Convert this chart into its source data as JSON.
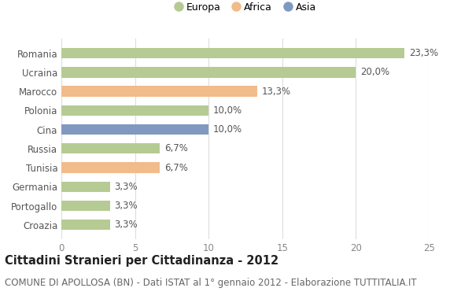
{
  "categories": [
    "Romania",
    "Ucraina",
    "Marocco",
    "Polonia",
    "Cina",
    "Russia",
    "Tunisia",
    "Germania",
    "Portogallo",
    "Croazia"
  ],
  "values": [
    23.3,
    20.0,
    13.3,
    10.0,
    10.0,
    6.7,
    6.7,
    3.3,
    3.3,
    3.3
  ],
  "labels": [
    "23,3%",
    "20,0%",
    "13,3%",
    "10,0%",
    "10,0%",
    "6,7%",
    "6,7%",
    "3,3%",
    "3,3%",
    "3,3%"
  ],
  "continent": [
    "Europa",
    "Europa",
    "Africa",
    "Europa",
    "Asia",
    "Europa",
    "Africa",
    "Europa",
    "Europa",
    "Europa"
  ],
  "colors": {
    "Europa": "#b5cb93",
    "Africa": "#f2bb8a",
    "Asia": "#8099c0"
  },
  "legend_items": [
    "Europa",
    "Africa",
    "Asia"
  ],
  "xlim": [
    0,
    25
  ],
  "xticks": [
    0,
    5,
    10,
    15,
    20,
    25
  ],
  "title": "Cittadini Stranieri per Cittadinanza - 2012",
  "subtitle": "COMUNE DI APOLLOSA (BN) - Dati ISTAT al 1° gennaio 2012 - Elaborazione TUTTITALIA.IT",
  "bg_color": "#ffffff",
  "bar_height": 0.55,
  "label_fontsize": 8.5,
  "title_fontsize": 10.5,
  "subtitle_fontsize": 8.5,
  "ytick_fontsize": 8.5,
  "xtick_fontsize": 8.5
}
